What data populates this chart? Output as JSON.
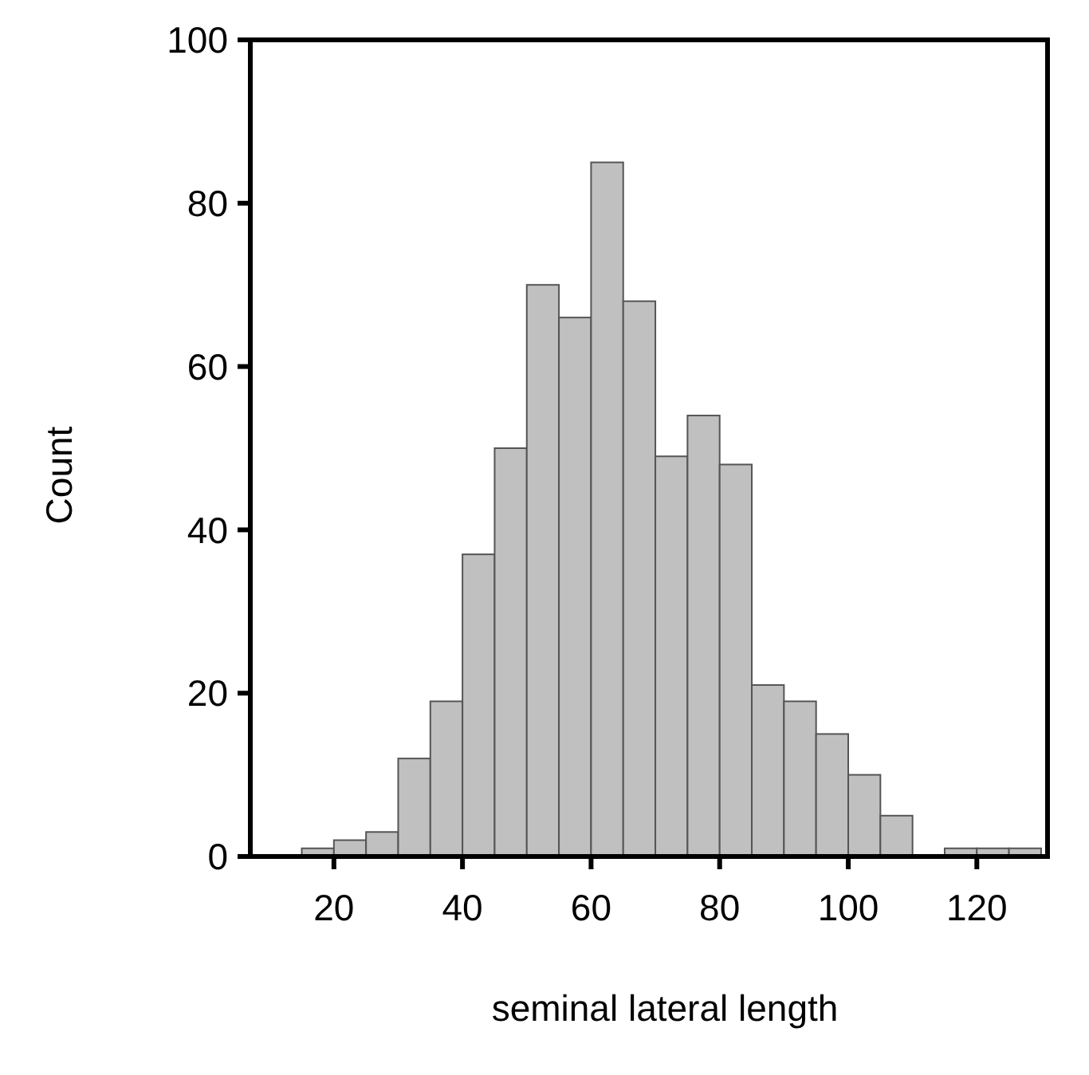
{
  "chart_data": {
    "type": "histogram",
    "xlabel": "seminal lateral length",
    "ylabel": "Count",
    "bins": [
      15,
      20,
      25,
      30,
      35,
      40,
      45,
      50,
      55,
      60,
      65,
      70,
      75,
      80,
      85,
      90,
      95,
      100,
      105,
      110,
      115,
      120,
      125,
      130
    ],
    "values": [
      1,
      2,
      3,
      12,
      19,
      37,
      50,
      70,
      66,
      85,
      68,
      49,
      54,
      48,
      21,
      19,
      15,
      10,
      5,
      0,
      1,
      1,
      1
    ],
    "color": "#c0c0c0",
    "xlim": [
      7,
      131
    ],
    "xticks": [
      20,
      40,
      60,
      80,
      100,
      120
    ],
    "ylim": [
      0,
      100
    ],
    "yticks": [
      0,
      20,
      40,
      60,
      80,
      100
    ],
    "grid": false
  }
}
